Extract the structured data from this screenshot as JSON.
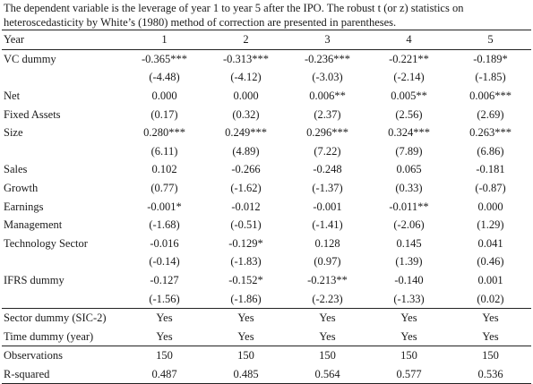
{
  "caption": "The dependent variable is the leverage of year 1 to year 5 after the IPO. The robust t (or z) statistics on heteroscedasticity by White’s (1980) method of correction are presented in parentheses.",
  "table": {
    "header": [
      "Year",
      "1",
      "2",
      "3",
      "4",
      "5"
    ],
    "rows": [
      {
        "label": "VC dummy",
        "cells": [
          "-0.365***",
          "-0.313***",
          "-0.236***",
          "-0.221**",
          "-0.189*"
        ]
      },
      {
        "label": "",
        "cells": [
          "(-4.48)",
          "(-4.12)",
          "(-3.03)",
          "(-2.14)",
          "(-1.85)"
        ]
      },
      {
        "label": "Net",
        "cells": [
          "0.000",
          "0.000",
          "0.006**",
          "0.005**",
          "0.006***"
        ]
      },
      {
        "label": "Fixed Assets",
        "cells": [
          "(0.17)",
          "(0.32)",
          "(2.37)",
          "(2.56)",
          "(2.69)"
        ]
      },
      {
        "label": "Size",
        "cells": [
          "0.280***",
          "0.249***",
          "0.296***",
          "0.324***",
          "0.263***"
        ]
      },
      {
        "label": "",
        "cells": [
          "(6.11)",
          "(4.89)",
          "(7.22)",
          "(7.89)",
          "(6.86)"
        ]
      },
      {
        "label": "Sales",
        "cells": [
          "0.102",
          "-0.266",
          "-0.248",
          "0.065",
          "-0.181"
        ]
      },
      {
        "label": "Growth",
        "cells": [
          "(0.77)",
          "(-1.62)",
          "(-1.37)",
          "(0.33)",
          "(-0.87)"
        ]
      },
      {
        "label": "Earnings",
        "cells": [
          "-0.001*",
          "-0.012",
          "-0.001",
          "-0.011**",
          "0.000"
        ]
      },
      {
        "label": "Management",
        "cells": [
          "(-1.68)",
          "(-0.51)",
          "(-1.41)",
          "(-2.06)",
          "(1.29)"
        ]
      },
      {
        "label": "Technology Sector",
        "cells": [
          "-0.016",
          "-0.129*",
          "0.128",
          "0.145",
          "0.041"
        ]
      },
      {
        "label": "",
        "cells": [
          "(-0.14)",
          "(-1.83)",
          "(0.97)",
          "(1.39)",
          "(0.46)"
        ]
      },
      {
        "label": "IFRS dummy",
        "cells": [
          "-0.127",
          "-0.152*",
          "-0.213**",
          "-0.140",
          "0.001"
        ]
      },
      {
        "label": "",
        "cells": [
          "(-1.56)",
          "(-1.86)",
          "(-2.23)",
          "(-1.33)",
          "(0.02)"
        ]
      }
    ],
    "controls": [
      {
        "label": "Sector dummy (SIC-2)",
        "cells": [
          "Yes",
          "Yes",
          "Yes",
          "Yes",
          "Yes"
        ]
      },
      {
        "label": "Time dummy (year)",
        "cells": [
          "Yes",
          "Yes",
          "Yes",
          "Yes",
          "Yes"
        ]
      }
    ],
    "stats": [
      {
        "label": "Observations",
        "cells": [
          "150",
          "150",
          "150",
          "150",
          "150"
        ]
      },
      {
        "label": "R-squared",
        "cells": [
          "0.487",
          "0.485",
          "0.564",
          "0.577",
          "0.536"
        ]
      }
    ]
  }
}
